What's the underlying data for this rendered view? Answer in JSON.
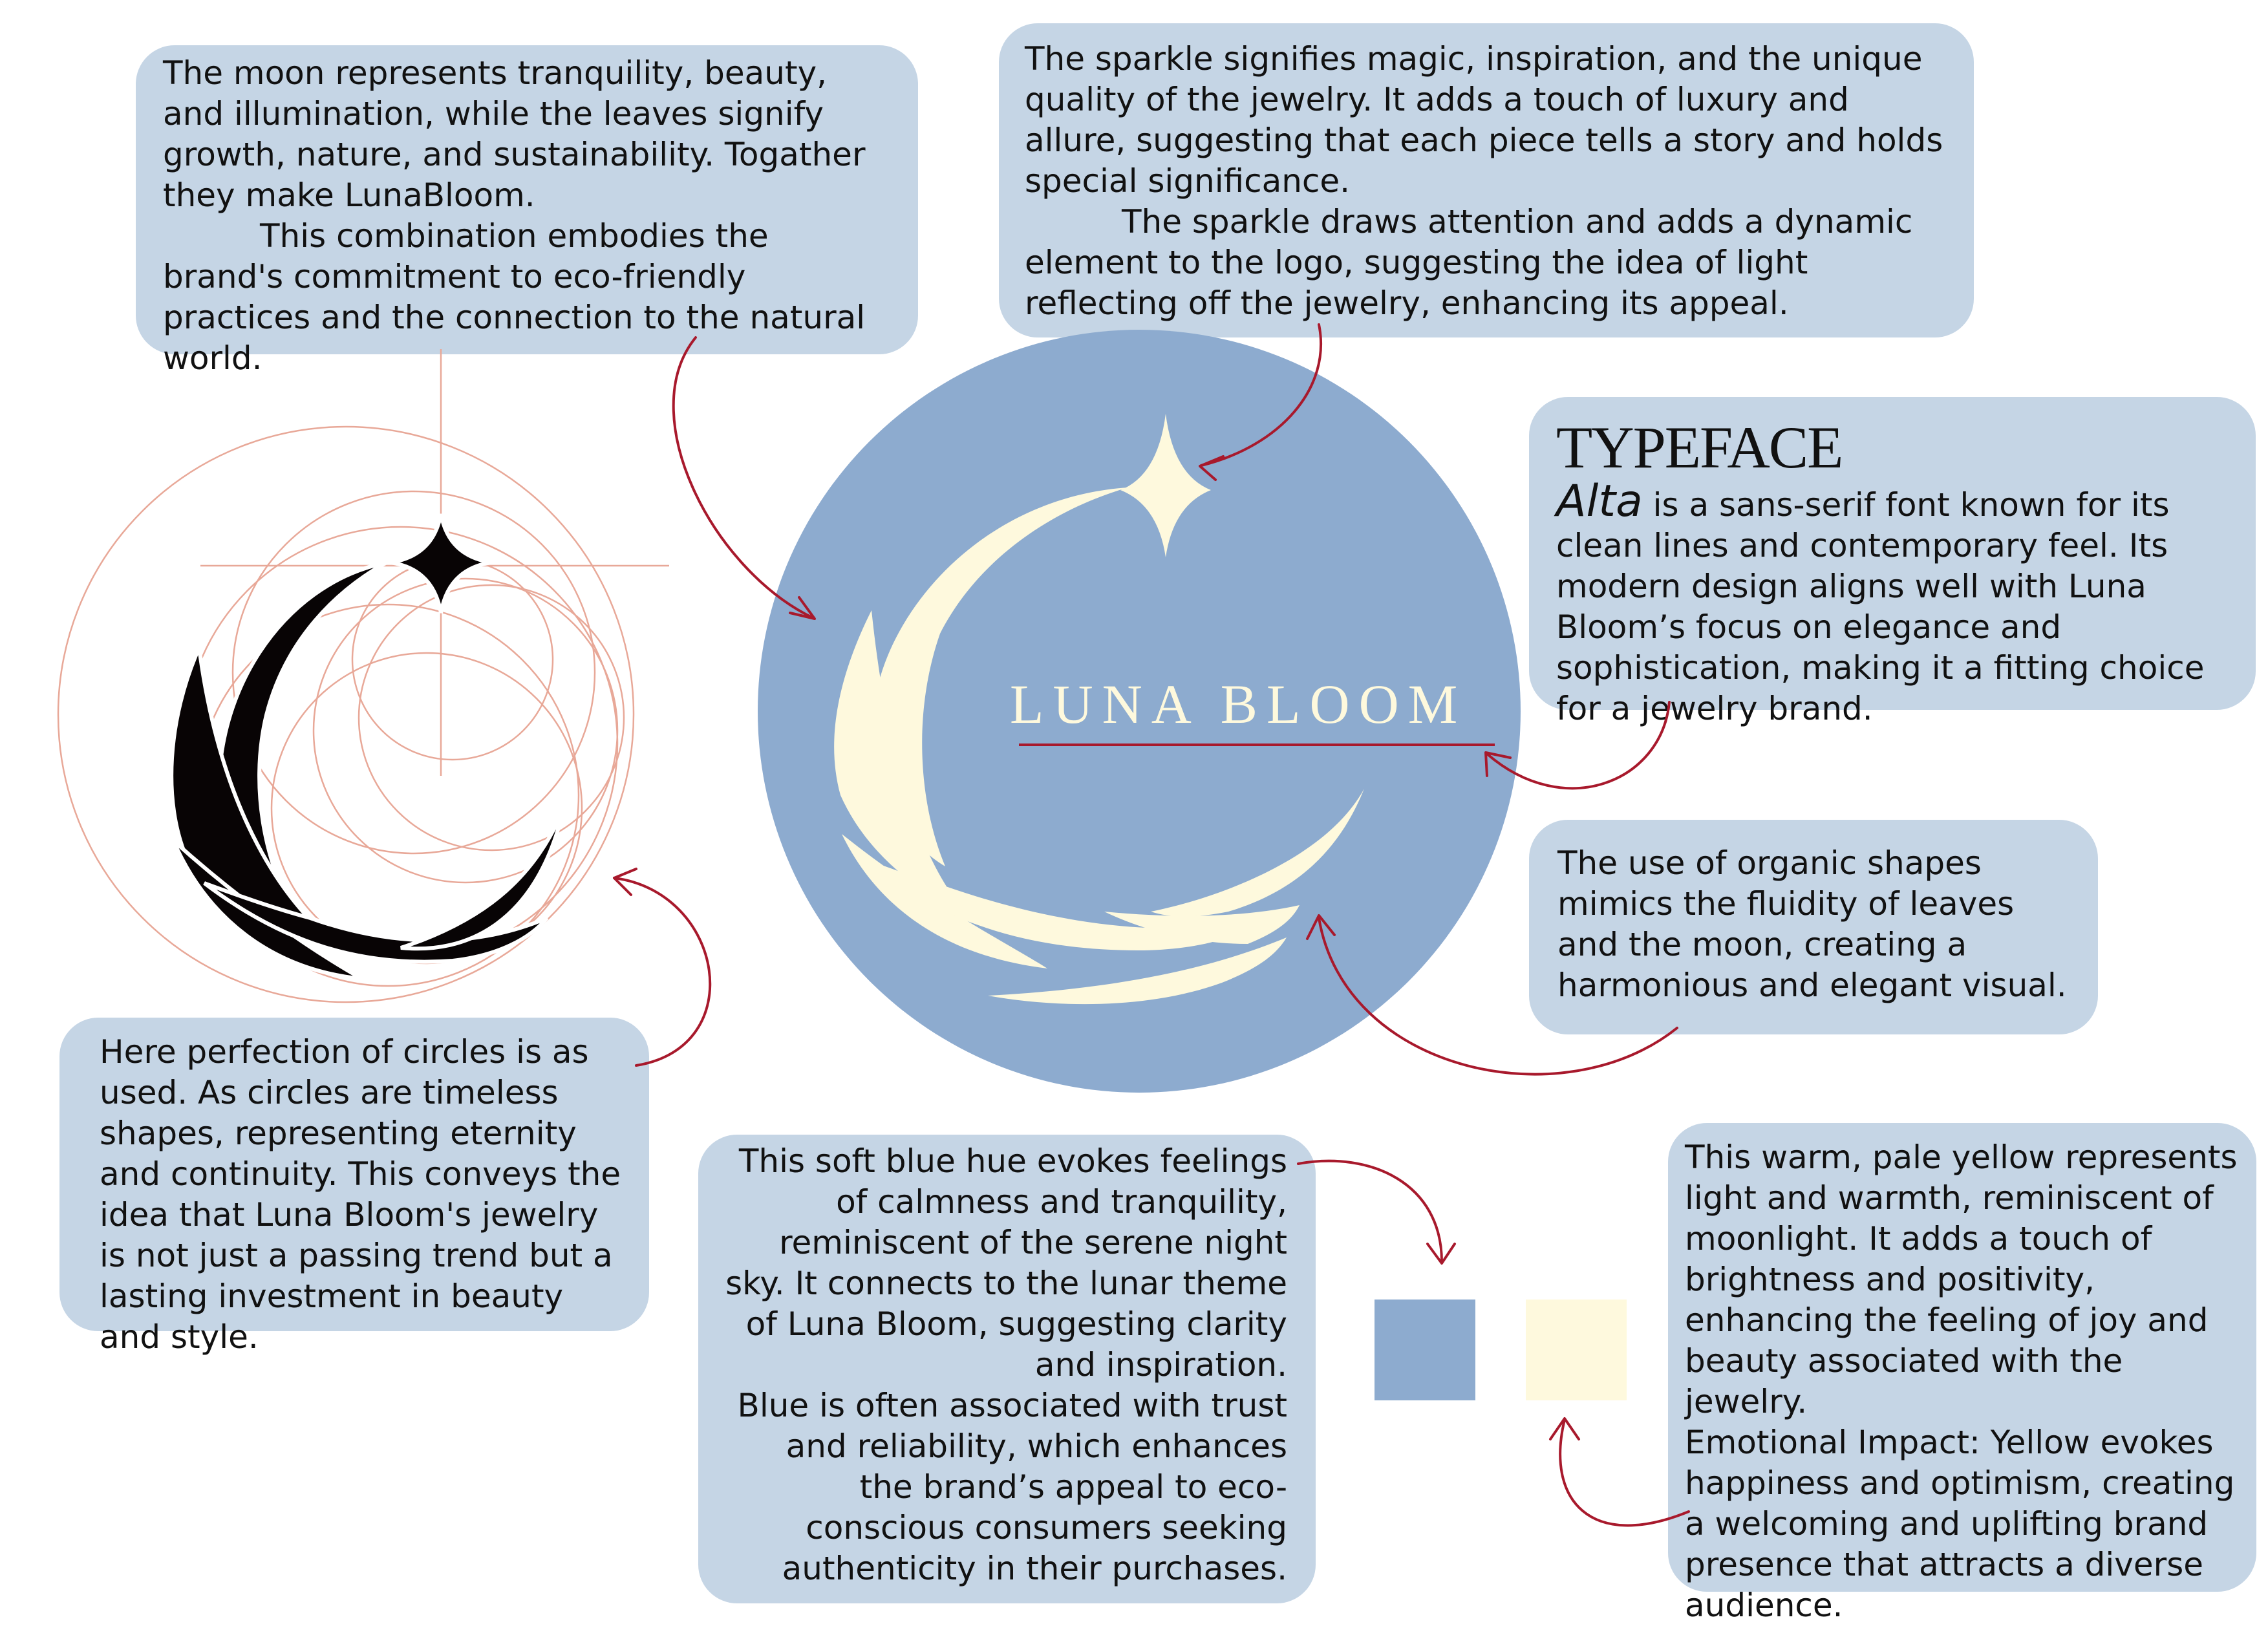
{
  "colors": {
    "box_bg": "#c5d5e5",
    "circle_blue": "#8dabcf",
    "cream": "#fef9dd",
    "arrow_red": "#a8192c",
    "construction_line": "#e8a898",
    "logo_black": "#080405"
  },
  "logo": {
    "wordmark": "LUNA BLOOM"
  },
  "callouts": {
    "moon_leaves": {
      "p1": "The moon represents tranquility, beauty, and illumination, while the leaves signify growth, nature, and sustainability. Togather they make LunaBloom.",
      "p2": "This combination embodies the brand's commitment to eco-friendly practices and the connection to the natural world."
    },
    "sparkle": {
      "p1": "The sparkle signifies magic, inspiration, and the unique quality of the jewelry. It adds a touch of luxury and allure, suggesting that each piece tells a story and holds special significance.",
      "p2": "The sparkle draws attention and adds a dynamic element to the logo, suggesting the idea of light reflecting off the jewelry, enhancing its appeal."
    },
    "typeface": {
      "heading": "TYPEFACE",
      "font_name": "Alta",
      "body": " is a sans-serif font known for its clean lines and contemporary feel. Its modern design aligns well with Luna Bloom’s focus on elegance and sophistication, making it a fitting choice for a jewelry brand."
    },
    "organic": {
      "text": "The use of organic shapes mimics the fluidity of leaves and the moon, creating a harmonious and elegant visual."
    },
    "circles": {
      "text": "Here perfection of circles is as used. As circles are timeless shapes, representing eternity and continuity. This conveys the idea that Luna Bloom's jewelry is not just a passing trend but a lasting investment in beauty and style."
    },
    "blue": {
      "p1": "This soft blue hue evokes feelings of calmness and tranquility, reminiscent of the serene night sky. It connects to the lunar theme of Luna Bloom, suggesting clarity and inspiration.",
      "p2": "Blue is often associated with trust and reliability, which enhances the brand’s appeal to eco-conscious consumers seeking authenticity in their purchases."
    },
    "yellow": {
      "p1": "This warm, pale yellow represents light and warmth, reminiscent of moonlight. It adds a touch of brightness and positivity, enhancing the feeling of joy and beauty associated with the jewelry.",
      "p2": "Emotional Impact: Yellow evokes happiness and optimism, creating a welcoming and uplifting brand presence that attracts a diverse audience."
    }
  }
}
